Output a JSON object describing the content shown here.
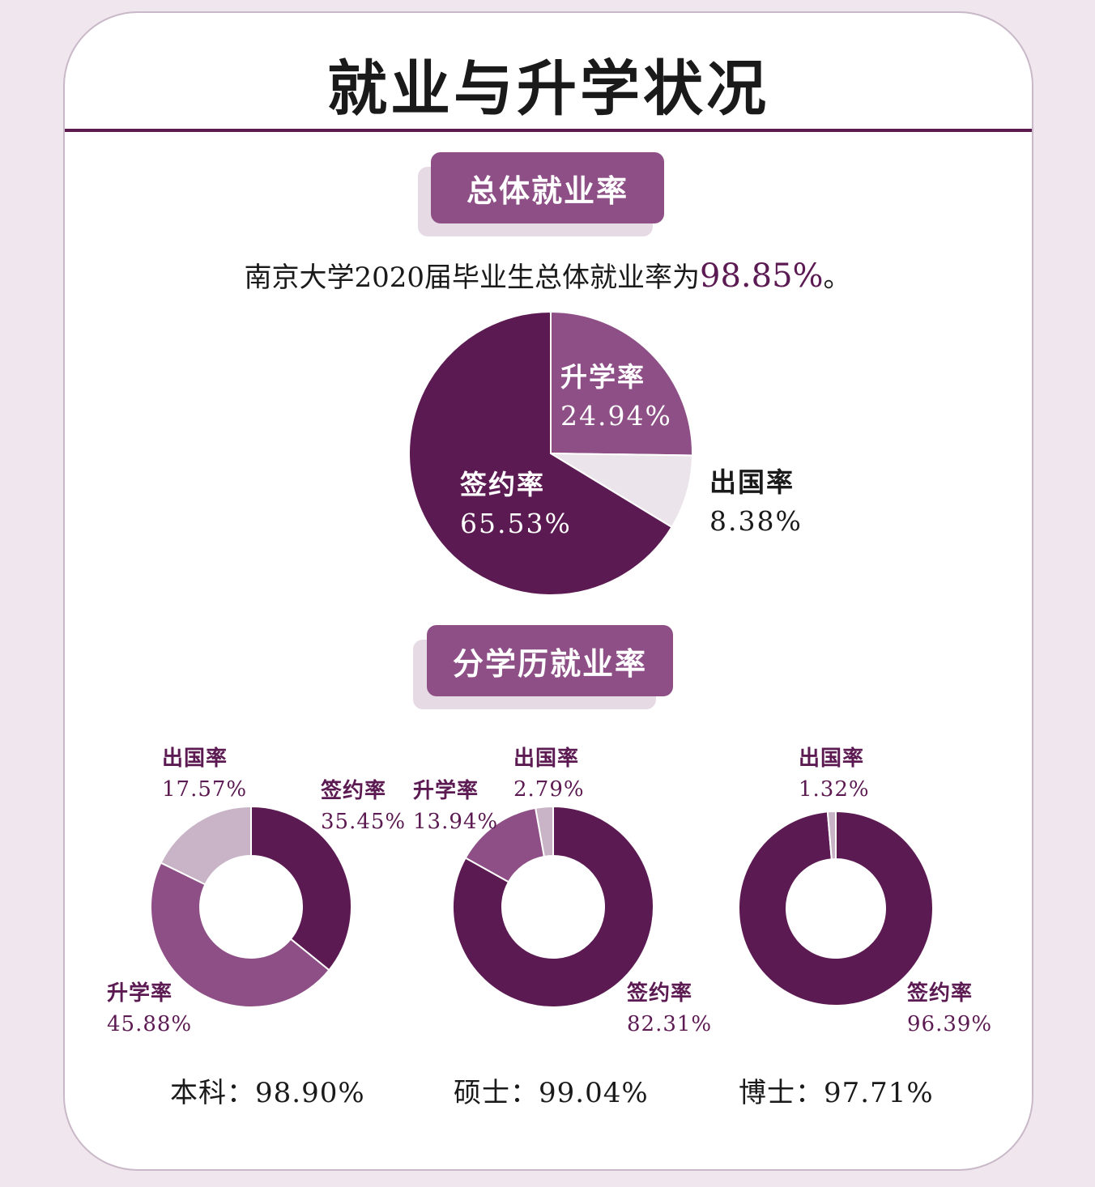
{
  "title": "就业与升学状况",
  "section1": {
    "heading": "总体就业率"
  },
  "summary": {
    "prefix": "南京大学2020届毕业生总体就业率为",
    "value": "98.85%",
    "suffix": "。"
  },
  "section2": {
    "heading": "分学历就业率"
  },
  "colors": {
    "dark": "#5c1a52",
    "medium": "#8d4f85",
    "light": "#c8b4c6",
    "pale": "#ece4eb"
  },
  "chart_data": [
    {
      "type": "pie",
      "title": "",
      "slices": [
        {
          "label": "升学率",
          "value": 24.94,
          "display": "24.94%",
          "color": "#8d4f85"
        },
        {
          "label": "出国率",
          "value": 8.38,
          "display": "8.38%",
          "color": "#ece4eb"
        },
        {
          "label": "签约率",
          "value": 65.53,
          "display": "65.53%",
          "color": "#5c1a52"
        }
      ]
    },
    {
      "type": "pie",
      "title": "本科：98.90%",
      "label": "本科",
      "total": "98.90%",
      "slices": [
        {
          "label": "签约率",
          "value": 35.45,
          "display": "35.45%",
          "color": "#5c1a52"
        },
        {
          "label": "升学率",
          "value": 45.88,
          "display": "45.88%",
          "color": "#8d4f85"
        },
        {
          "label": "出国率",
          "value": 17.57,
          "display": "17.57%",
          "color": "#c8b4c6"
        }
      ]
    },
    {
      "type": "pie",
      "title": "硕士：99.04%",
      "label": "硕士",
      "total": "99.04%",
      "slices": [
        {
          "label": "签约率",
          "value": 82.31,
          "display": "82.31%",
          "color": "#5c1a52"
        },
        {
          "label": "升学率",
          "value": 13.94,
          "display": "13.94%",
          "color": "#8d4f85"
        },
        {
          "label": "出国率",
          "value": 2.79,
          "display": "2.79%",
          "color": "#c8b4c6"
        }
      ]
    },
    {
      "type": "pie",
      "title": "博士：97.71%",
      "label": "博士",
      "total": "97.71%",
      "slices": [
        {
          "label": "签约率",
          "value": 96.39,
          "display": "96.39%",
          "color": "#5c1a52"
        },
        {
          "label": "出国率",
          "value": 1.32,
          "display": "1.32%",
          "color": "#c8b4c6"
        }
      ]
    }
  ],
  "footer": {
    "undergrad": {
      "label": "本科：",
      "value": "98.90%"
    },
    "master": {
      "label": "硕士：",
      "value": "99.04%"
    },
    "doctor": {
      "label": "博士：",
      "value": "97.71%"
    }
  }
}
